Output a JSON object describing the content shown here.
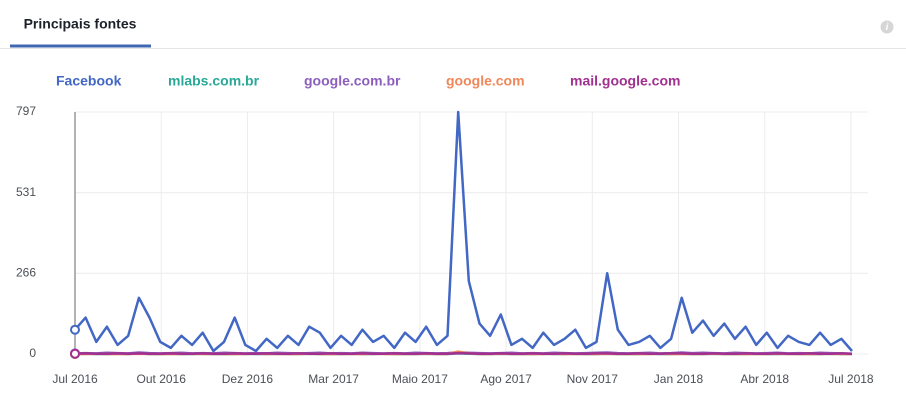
{
  "info_icon": "i",
  "chart_data": {
    "type": "line",
    "title": "Principais fontes",
    "legend": "top-left",
    "grid": true,
    "x": [
      0,
      10,
      20,
      30,
      40,
      50,
      60,
      70,
      80,
      90,
      100,
      110,
      120,
      130,
      140,
      150,
      160,
      170,
      180,
      190,
      200,
      210,
      220,
      230,
      240,
      250,
      260,
      270,
      280,
      290,
      300,
      310,
      320,
      330,
      340,
      350,
      360,
      370,
      380,
      390,
      400,
      410,
      420,
      430,
      440,
      450,
      460,
      470,
      480,
      490,
      500,
      510,
      520,
      530,
      540,
      550,
      560,
      570,
      580,
      590,
      600,
      610,
      620,
      630,
      640,
      650,
      660,
      670,
      680,
      690,
      700,
      710,
      720,
      730
    ],
    "xlim": [
      0,
      730
    ],
    "xticks": [
      {
        "value": 0,
        "label": "Jul 2016"
      },
      {
        "value": 81,
        "label": "Out 2016"
      },
      {
        "value": 162,
        "label": "Dez 2016"
      },
      {
        "value": 243,
        "label": "Mar 2017"
      },
      {
        "value": 324,
        "label": "Maio 2017"
      },
      {
        "value": 405,
        "label": "Ago 2017"
      },
      {
        "value": 486,
        "label": "Nov 2017"
      },
      {
        "value": 567,
        "label": "Jan 2018"
      },
      {
        "value": 648,
        "label": "Abr 2018"
      },
      {
        "value": 729,
        "label": "Jul 2018"
      }
    ],
    "ylim": [
      0,
      797
    ],
    "yticks": [
      0,
      266,
      531,
      797
    ],
    "series": [
      {
        "name": "Facebook",
        "color": "#4267c4",
        "values": [
          80,
          120,
          40,
          90,
          30,
          60,
          185,
          120,
          40,
          20,
          60,
          30,
          70,
          10,
          40,
          120,
          30,
          10,
          50,
          20,
          60,
          30,
          90,
          70,
          20,
          60,
          30,
          80,
          40,
          60,
          20,
          70,
          40,
          90,
          30,
          60,
          797,
          240,
          100,
          60,
          130,
          30,
          50,
          20,
          70,
          30,
          50,
          80,
          20,
          40,
          266,
          80,
          30,
          40,
          60,
          20,
          50,
          185,
          70,
          110,
          60,
          100,
          50,
          90,
          30,
          70,
          20,
          60,
          40,
          30,
          70,
          30,
          50,
          10
        ]
      },
      {
        "name": "mlabs.com.br",
        "color": "#2aa897",
        "values": [
          0,
          1,
          0,
          0,
          1,
          0,
          2,
          0,
          0,
          1,
          0,
          0,
          1,
          0,
          0,
          0,
          1,
          0,
          0,
          1,
          0,
          0,
          1,
          0,
          0,
          0,
          1,
          0,
          0,
          1,
          0,
          0,
          0,
          1,
          0,
          0,
          2,
          1,
          0,
          0,
          1,
          0,
          0,
          0,
          1,
          0,
          0,
          1,
          0,
          0,
          1,
          0,
          0,
          0,
          1,
          0,
          0,
          1,
          0,
          0,
          1,
          0,
          0,
          0,
          1,
          0,
          0,
          1,
          0,
          0,
          0,
          1,
          0,
          0
        ]
      },
      {
        "name": "google.com.br",
        "color": "#8c5fbf",
        "values": [
          2,
          3,
          2,
          4,
          3,
          2,
          5,
          3,
          2,
          3,
          4,
          2,
          3,
          2,
          4,
          3,
          2,
          3,
          2,
          4,
          3,
          2,
          3,
          4,
          2,
          3,
          2,
          4,
          3,
          2,
          3,
          2,
          4,
          3,
          2,
          3,
          6,
          4,
          3,
          2,
          3,
          4,
          2,
          3,
          2,
          4,
          3,
          2,
          3,
          4,
          5,
          3,
          2,
          3,
          4,
          2,
          3,
          5,
          3,
          4,
          3,
          2,
          4,
          3,
          2,
          3,
          4,
          2,
          3,
          2,
          4,
          3,
          2,
          1
        ]
      },
      {
        "name": "google.com",
        "color": "#f0875a",
        "values": [
          0,
          0,
          1,
          0,
          0,
          0,
          1,
          0,
          0,
          0,
          0,
          1,
          0,
          0,
          0,
          0,
          0,
          1,
          0,
          0,
          0,
          0,
          1,
          0,
          0,
          0,
          0,
          0,
          1,
          0,
          0,
          0,
          0,
          1,
          0,
          0,
          8,
          2,
          0,
          0,
          1,
          0,
          0,
          0,
          0,
          1,
          0,
          0,
          0,
          0,
          1,
          0,
          0,
          0,
          0,
          1,
          0,
          0,
          0,
          0,
          1,
          0,
          0,
          0,
          0,
          0,
          1,
          0,
          0,
          0,
          0,
          1,
          0,
          0
        ]
      },
      {
        "name": "mail.google.com",
        "color": "#a1308f",
        "values": [
          1,
          2,
          1,
          1,
          2,
          1,
          2,
          1,
          1,
          2,
          1,
          1,
          2,
          1,
          1,
          2,
          1,
          1,
          2,
          1,
          1,
          2,
          1,
          1,
          2,
          1,
          1,
          2,
          1,
          1,
          2,
          1,
          1,
          2,
          1,
          1,
          3,
          2,
          1,
          1,
          2,
          1,
          1,
          2,
          1,
          1,
          2,
          1,
          1,
          2,
          2,
          1,
          1,
          2,
          1,
          1,
          2,
          2,
          1,
          1,
          2,
          1,
          1,
          2,
          1,
          1,
          2,
          1,
          1,
          2,
          1,
          1,
          2,
          1
        ]
      }
    ]
  }
}
